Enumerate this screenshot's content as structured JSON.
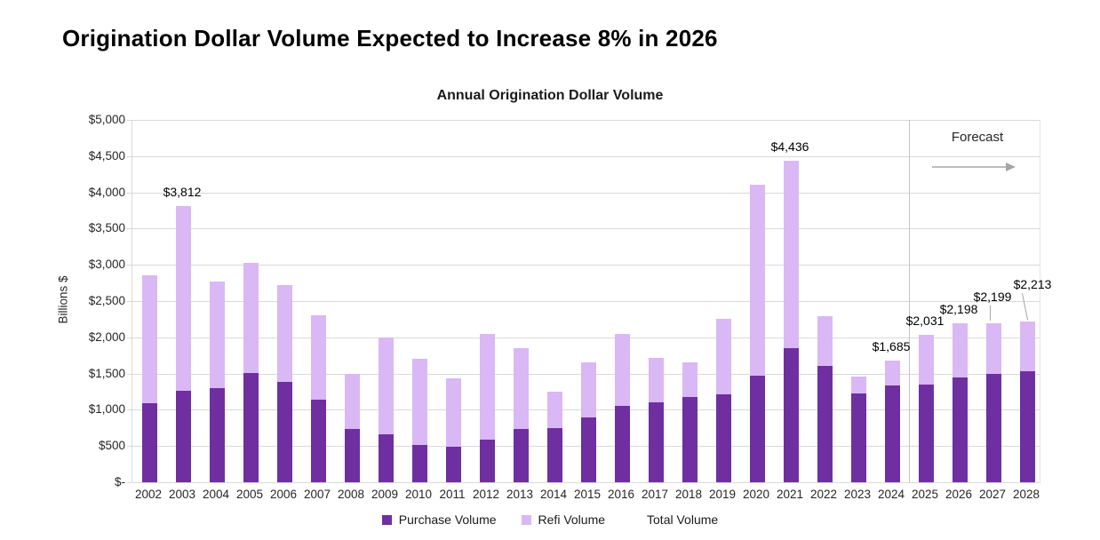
{
  "page_title": "Origination Dollar Volume Expected to Increase 8% in 2026",
  "chart_data": {
    "type": "bar",
    "stacked": true,
    "title": "Annual Origination Dollar Volume",
    "ylabel": "Billions $",
    "ylim": [
      0,
      5000
    ],
    "ytick_step": 500,
    "ytick_labels": [
      "$-",
      "$500",
      "$1,000",
      "$1,500",
      "$2,000",
      "$2,500",
      "$3,000",
      "$3,500",
      "$4,000",
      "$4,500",
      "$5,000"
    ],
    "categories": [
      "2002",
      "2003",
      "2004",
      "2005",
      "2006",
      "2007",
      "2008",
      "2009",
      "2010",
      "2011",
      "2012",
      "2013",
      "2014",
      "2015",
      "2016",
      "2017",
      "2018",
      "2019",
      "2020",
      "2021",
      "2022",
      "2023",
      "2024",
      "2025",
      "2026",
      "2027",
      "2028"
    ],
    "series": [
      {
        "name": "Purchase Volume",
        "color": "#6f2fa0",
        "values": [
          1090,
          1263,
          1300,
          1508,
          1390,
          1140,
          730,
          660,
          520,
          490,
          590,
          735,
          750,
          900,
          1050,
          1100,
          1175,
          1210,
          1475,
          1845,
          1600,
          1230,
          1330,
          1350,
          1450,
          1500,
          1530
        ]
      },
      {
        "name": "Refi Volume",
        "color": "#d9b8f5",
        "values": [
          1760,
          2549,
          1470,
          1522,
          1330,
          1170,
          770,
          1340,
          1180,
          940,
          1455,
          1110,
          505,
          760,
          1000,
          610,
          475,
          1050,
          2635,
          2591,
          690,
          225,
          355,
          681,
          748,
          699,
          683
        ]
      }
    ],
    "totals": [
      2850,
      3812,
      2770,
      3030,
      2720,
      2310,
      1500,
      2000,
      1700,
      1430,
      2045,
      1845,
      1255,
      1660,
      2050,
      1710,
      1650,
      2260,
      4110,
      4436,
      2290,
      1455,
      1685,
      2031,
      2198,
      2199,
      2213
    ],
    "annotations": [
      {
        "category": "2003",
        "text": "$3,812"
      },
      {
        "category": "2021",
        "text": "$4,436"
      },
      {
        "category": "2024",
        "text": "$1,685"
      },
      {
        "category": "2025",
        "text": "$2,031"
      },
      {
        "category": "2026",
        "text": "$2,198"
      },
      {
        "category": "2027",
        "text": "$2,199",
        "lift": 14,
        "leader": "vertical"
      },
      {
        "category": "2028",
        "text": "$2,213",
        "lift": 26,
        "dx": 7,
        "leader": "diagonal"
      }
    ],
    "forecast": {
      "label": "Forecast",
      "divider_after": "2024"
    },
    "legend_items": [
      {
        "label": "Purchase Volume",
        "color": "#6f2fa0"
      },
      {
        "label": "Refi Volume",
        "color": "#d9b8f5"
      },
      {
        "label": "Total Volume",
        "color": null
      }
    ],
    "legend_position": "bottom",
    "grid": true,
    "gridline_color": "#d9d9d9"
  }
}
